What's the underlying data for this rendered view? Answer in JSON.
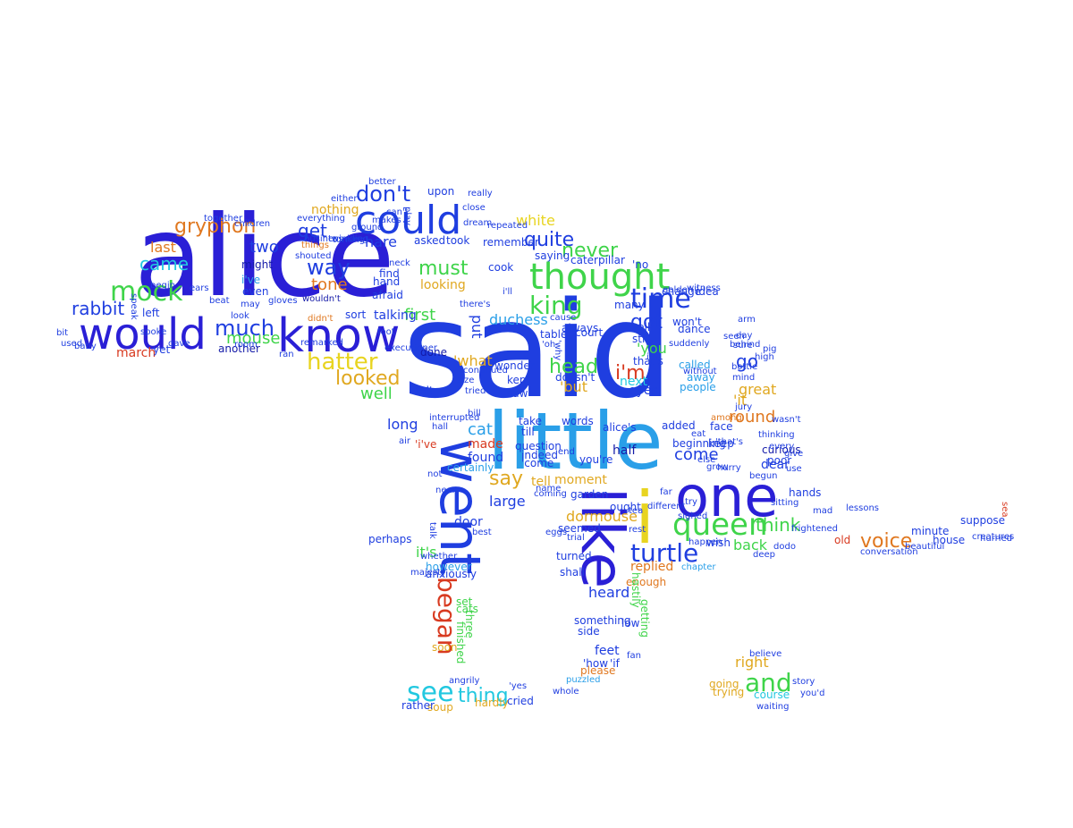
{
  "palette": {
    "blue": "#1f3ee0",
    "indigo": "#2a1fd6",
    "sky": "#2a9fe8",
    "cyan": "#22c8e0",
    "green": "#3fd44a",
    "lime": "#8ad21e",
    "yellow": "#e8d420",
    "gold": "#e0a820",
    "orange": "#e07820",
    "red": "#d83a20",
    "navy": "#141aa8"
  },
  "words": [
    {
      "text": "said",
      "color": "blue"
    },
    {
      "text": "alice",
      "color": "indigo"
    },
    {
      "text": "little",
      "color": "sky"
    },
    {
      "text": "one",
      "color": "indigo"
    },
    {
      "text": "would",
      "color": "indigo"
    },
    {
      "text": "know",
      "color": "indigo"
    },
    {
      "text": "could",
      "color": "blue"
    },
    {
      "text": "thought",
      "color": "green"
    },
    {
      "text": "like",
      "color": "indigo"
    },
    {
      "text": "i",
      "color": "yellow"
    },
    {
      "text": "went",
      "color": "blue"
    },
    {
      "text": "queen",
      "color": "green"
    },
    {
      "text": "time",
      "color": "blue"
    },
    {
      "text": "king",
      "color": "green"
    },
    {
      "text": "see",
      "color": "cyan"
    },
    {
      "text": "began",
      "color": "red"
    },
    {
      "text": "turtle",
      "color": "blue"
    },
    {
      "text": "mock",
      "color": "green"
    },
    {
      "text": "much",
      "color": "blue"
    },
    {
      "text": "and",
      "color": "green"
    },
    {
      "text": "hatter",
      "color": "yellow"
    },
    {
      "text": "way",
      "color": "blue"
    },
    {
      "text": "don't",
      "color": "blue"
    },
    {
      "text": "gryphon",
      "color": "orange"
    },
    {
      "text": "say",
      "color": "gold"
    },
    {
      "text": "thing",
      "color": "cyan"
    },
    {
      "text": "voice",
      "color": "orange"
    },
    {
      "text": "quite",
      "color": "blue"
    },
    {
      "text": "must",
      "color": "green"
    },
    {
      "text": "never",
      "color": "green"
    },
    {
      "text": "looked",
      "color": "gold"
    },
    {
      "text": "got",
      "color": "blue"
    },
    {
      "text": "head",
      "color": "green"
    },
    {
      "text": "rabbit",
      "color": "blue"
    },
    {
      "text": "get",
      "color": "blue"
    },
    {
      "text": "came",
      "color": "cyan"
    },
    {
      "text": "mouse",
      "color": "green"
    },
    {
      "text": "tone",
      "color": "orange"
    },
    {
      "text": "think",
      "color": "green"
    },
    {
      "text": "go",
      "color": "blue"
    },
    {
      "text": "round",
      "color": "orange"
    },
    {
      "text": "great",
      "color": "gold"
    },
    {
      "text": "back",
      "color": "green"
    },
    {
      "text": "first",
      "color": "green"
    },
    {
      "text": "duchess",
      "color": "sky"
    },
    {
      "text": "heard",
      "color": "blue"
    },
    {
      "text": "cat",
      "color": "sky"
    },
    {
      "text": "long",
      "color": "blue"
    },
    {
      "text": "large",
      "color": "blue"
    },
    {
      "text": "right",
      "color": "gold"
    },
    {
      "text": "two",
      "color": "blue"
    },
    {
      "text": "last",
      "color": "orange"
    },
    {
      "text": "white",
      "color": "yellow"
    },
    {
      "text": "hare",
      "color": "blue"
    },
    {
      "text": "well",
      "color": "green"
    },
    {
      "text": "come",
      "color": "blue"
    },
    {
      "text": "dormouse",
      "color": "gold"
    },
    {
      "text": "put",
      "color": "blue"
    },
    {
      "text": "it's",
      "color": "green"
    },
    {
      "text": "i'm",
      "color": "red"
    },
    {
      "text": "'you",
      "color": "green"
    },
    {
      "text": "'but",
      "color": "gold"
    },
    {
      "text": "'it",
      "color": "gold"
    },
    {
      "text": "found",
      "color": "blue"
    },
    {
      "text": "replied",
      "color": "orange"
    },
    {
      "text": "might",
      "color": "navy"
    },
    {
      "text": "march",
      "color": "red"
    },
    {
      "text": "nothing",
      "color": "gold"
    },
    {
      "text": "made",
      "color": "red"
    },
    {
      "text": "'what",
      "color": "gold"
    },
    {
      "text": "eyes",
      "color": "blue"
    },
    {
      "text": "next",
      "color": "cyan"
    },
    {
      "text": "half",
      "color": "navy"
    },
    {
      "text": "dear",
      "color": "blue"
    },
    {
      "text": "curious",
      "color": "navy"
    },
    {
      "text": "looking",
      "color": "gold"
    },
    {
      "text": "moment",
      "color": "gold"
    },
    {
      "text": "tell",
      "color": "gold"
    },
    {
      "text": "door",
      "color": "blue"
    },
    {
      "text": "talking",
      "color": "blue"
    },
    {
      "text": "sort",
      "color": "blue"
    },
    {
      "text": "caterpillar",
      "color": "blue"
    },
    {
      "text": "felt",
      "color": "blue"
    },
    {
      "text": "soon",
      "color": "gold"
    },
    {
      "text": "turned",
      "color": "blue"
    },
    {
      "text": "cried",
      "color": "blue"
    },
    {
      "text": "soup",
      "color": "gold"
    },
    {
      "text": "course",
      "color": "cyan"
    },
    {
      "text": "minute",
      "color": "blue"
    },
    {
      "text": "house",
      "color": "blue"
    },
    {
      "text": "old",
      "color": "red"
    },
    {
      "text": "feet",
      "color": "blue"
    },
    {
      "text": "please",
      "color": "orange"
    },
    {
      "text": "'i've",
      "color": "red"
    },
    {
      "text": "i've",
      "color": "sky"
    },
    {
      "text": "even",
      "color": "blue"
    },
    {
      "text": "table",
      "color": "blue"
    },
    {
      "text": "always",
      "color": "blue"
    },
    {
      "text": "still",
      "color": "blue"
    },
    {
      "text": "many",
      "color": "blue"
    },
    {
      "text": "trying",
      "color": "gold"
    },
    {
      "text": "going",
      "color": "gold"
    },
    {
      "text": "something",
      "color": "blue"
    },
    {
      "text": "side",
      "color": "blue"
    },
    {
      "text": "rather",
      "color": "blue"
    },
    {
      "text": "hardly",
      "color": "gold"
    },
    {
      "text": "left",
      "color": "blue"
    },
    {
      "text": "yet",
      "color": "blue"
    },
    {
      "text": "another",
      "color": "navy"
    },
    {
      "text": "people",
      "color": "sky"
    },
    {
      "text": "away",
      "color": "sky"
    },
    {
      "text": "called",
      "color": "sky"
    },
    {
      "text": "dance",
      "color": "blue"
    },
    {
      "text": "jury",
      "color": "blue"
    },
    {
      "text": "mind",
      "color": "blue"
    },
    {
      "text": "high",
      "color": "blue"
    },
    {
      "text": "sure",
      "color": "blue"
    },
    {
      "text": "poor",
      "color": "blue"
    },
    {
      "text": "face",
      "color": "blue"
    },
    {
      "text": "keep",
      "color": "blue"
    },
    {
      "text": "added",
      "color": "blue"
    },
    {
      "text": "beginning",
      "color": "blue"
    },
    {
      "text": "among",
      "color": "orange"
    },
    {
      "text": "wish",
      "color": "blue"
    },
    {
      "text": "chapter",
      "color": "sky"
    },
    {
      "text": "shall",
      "color": "blue"
    },
    {
      "text": "however",
      "color": "sky"
    },
    {
      "text": "anxiously",
      "color": "blue"
    },
    {
      "text": "perhaps",
      "color": "blue"
    },
    {
      "text": "certainly",
      "color": "sky"
    },
    {
      "text": "question",
      "color": "blue"
    },
    {
      "text": "indeed",
      "color": "blue"
    },
    {
      "text": "'come",
      "color": "blue"
    },
    {
      "text": "you're",
      "color": "blue"
    },
    {
      "text": "alice's",
      "color": "blue"
    },
    {
      "text": "words",
      "color": "blue"
    },
    {
      "text": "take",
      "color": "blue"
    },
    {
      "text": "till",
      "color": "blue"
    },
    {
      "text": "kept",
      "color": "blue"
    },
    {
      "text": "saw",
      "color": "blue"
    },
    {
      "text": "wonder",
      "color": "blue"
    },
    {
      "text": "done",
      "color": "navy"
    },
    {
      "text": "three",
      "color": "green"
    },
    {
      "text": "finished",
      "color": "green"
    },
    {
      "text": "set",
      "color": "green"
    },
    {
      "text": "cats",
      "color": "green"
    },
    {
      "text": "whole",
      "color": "blue"
    },
    {
      "text": "puzzled",
      "color": "sky"
    },
    {
      "text": "'how",
      "color": "blue"
    },
    {
      "text": "'if",
      "color": "blue"
    },
    {
      "text": "fan",
      "color": "blue"
    },
    {
      "text": "'yes",
      "color": "blue"
    },
    {
      "text": "garden",
      "color": "blue"
    },
    {
      "text": "seemed",
      "color": "blue"
    },
    {
      "text": "court",
      "color": "blue"
    },
    {
      "text": "doesn't",
      "color": "blue"
    },
    {
      "text": "low",
      "color": "blue"
    },
    {
      "text": "getting",
      "color": "green"
    },
    {
      "text": "enough",
      "color": "orange"
    },
    {
      "text": "hastily",
      "color": "green"
    },
    {
      "text": "ought",
      "color": "blue"
    },
    {
      "text": "suppose",
      "color": "blue"
    },
    {
      "text": "conversation",
      "color": "blue"
    },
    {
      "text": "beautiful",
      "color": "blue"
    },
    {
      "text": "dodo",
      "color": "blue"
    },
    {
      "text": "mad",
      "color": "blue"
    },
    {
      "text": "give",
      "color": "blue"
    },
    {
      "text": "hands",
      "color": "blue"
    },
    {
      "text": "use",
      "color": "blue"
    },
    {
      "text": "every",
      "color": "blue"
    },
    {
      "text": "grow",
      "color": "blue"
    },
    {
      "text": "eat",
      "color": "blue"
    },
    {
      "text": "'well",
      "color": "blue"
    },
    {
      "text": "things",
      "color": "orange"
    },
    {
      "text": "find",
      "color": "blue"
    },
    {
      "text": "hand",
      "color": "blue"
    },
    {
      "text": "afraid",
      "color": "blue"
    },
    {
      "text": "upon",
      "color": "blue"
    },
    {
      "text": "asked",
      "color": "blue"
    },
    {
      "text": "took",
      "color": "blue"
    },
    {
      "text": "remember",
      "color": "blue"
    },
    {
      "text": "cook",
      "color": "blue"
    },
    {
      "text": "saying",
      "color": "blue"
    },
    {
      "text": "'no",
      "color": "blue"
    },
    {
      "text": "idea",
      "color": "blue"
    },
    {
      "text": "change",
      "color": "blue"
    },
    {
      "text": "won't",
      "color": "blue"
    },
    {
      "text": "that's",
      "color": "blue"
    },
    {
      "text": "day",
      "color": "blue"
    },
    {
      "text": "behind",
      "color": "blue"
    },
    {
      "text": "arm",
      "color": "blue"
    },
    {
      "text": "turning",
      "color": "blue"
    },
    {
      "text": "makes",
      "color": "blue"
    },
    {
      "text": "close",
      "color": "blue"
    },
    {
      "text": "can't",
      "color": "blue"
    },
    {
      "text": "better",
      "color": "blue"
    },
    {
      "text": "either",
      "color": "blue"
    },
    {
      "text": "together",
      "color": "blue"
    },
    {
      "text": "begin",
      "color": "blue"
    },
    {
      "text": "speak",
      "color": "blue"
    },
    {
      "text": "baby",
      "color": "blue"
    },
    {
      "text": "spoke",
      "color": "blue"
    },
    {
      "text": "gave",
      "color": "blue"
    },
    {
      "text": "used",
      "color": "blue"
    },
    {
      "text": "bit",
      "color": "blue"
    },
    {
      "text": "wouldn't",
      "color": "navy"
    },
    {
      "text": "didn't",
      "color": "orange"
    },
    {
      "text": "room",
      "color": "blue"
    },
    {
      "text": "ran",
      "color": "blue"
    },
    {
      "text": "may",
      "color": "blue"
    },
    {
      "text": "look",
      "color": "blue"
    },
    {
      "text": "everything",
      "color": "blue"
    },
    {
      "text": "twinkling",
      "color": "blue"
    },
    {
      "text": "hurried",
      "color": "blue"
    },
    {
      "text": "sea",
      "color": "red"
    },
    {
      "text": "believe",
      "color": "blue"
    },
    {
      "text": "story",
      "color": "blue"
    },
    {
      "text": "you'd",
      "color": "blue"
    },
    {
      "text": "waiting",
      "color": "blue"
    },
    {
      "text": "air",
      "color": "blue"
    },
    {
      "text": "majesty",
      "color": "blue"
    },
    {
      "text": "near",
      "color": "blue"
    },
    {
      "text": "talk",
      "color": "blue"
    },
    {
      "text": "best",
      "color": "blue"
    },
    {
      "text": "bill",
      "color": "blue"
    },
    {
      "text": "continued",
      "color": "blue"
    },
    {
      "text": "interrupted",
      "color": "blue"
    },
    {
      "text": "size",
      "color": "blue"
    },
    {
      "text": "tried",
      "color": "blue"
    },
    {
      "text": "hall",
      "color": "blue"
    },
    {
      "text": "shouted",
      "color": "blue"
    },
    {
      "text": "end",
      "color": "blue"
    },
    {
      "text": "far",
      "color": "blue"
    },
    {
      "text": "try",
      "color": "blue"
    },
    {
      "text": "rest",
      "color": "blue"
    },
    {
      "text": "deep",
      "color": "blue"
    },
    {
      "text": "sitting",
      "color": "blue"
    },
    {
      "text": "lessons",
      "color": "blue"
    },
    {
      "text": "frightened",
      "color": "blue"
    },
    {
      "text": "different",
      "color": "blue"
    },
    {
      "text": "angrily",
      "color": "blue"
    },
    {
      "text": "dream",
      "color": "blue"
    },
    {
      "text": "really",
      "color": "blue"
    },
    {
      "text": "repeated",
      "color": "blue"
    },
    {
      "text": "golden",
      "color": "blue"
    },
    {
      "text": "there's",
      "color": "blue"
    },
    {
      "text": "i'll",
      "color": "blue"
    },
    {
      "text": "'oh",
      "color": "blue"
    },
    {
      "text": "'why",
      "color": "blue"
    },
    {
      "text": "ite",
      "color": "blue"
    },
    {
      "text": "suddenly",
      "color": "blue"
    },
    {
      "text": "without",
      "color": "blue"
    },
    {
      "text": "else",
      "color": "blue"
    },
    {
      "text": "'that's",
      "color": "blue"
    },
    {
      "text": "thinking",
      "color": "blue"
    },
    {
      "text": "wasn't",
      "color": "blue"
    },
    {
      "text": "begun",
      "color": "blue"
    },
    {
      "text": "hurry",
      "color": "blue"
    },
    {
      "text": "neck",
      "color": "blue"
    },
    {
      "text": "not",
      "color": "blue"
    },
    {
      "text": "executioner",
      "color": "blue"
    },
    {
      "text": "foot",
      "color": "blue"
    },
    {
      "text": "children",
      "color": "blue"
    },
    {
      "text": "ground",
      "color": "blue"
    },
    {
      "text": "beat",
      "color": "blue"
    },
    {
      "text": "business",
      "color": "blue"
    },
    {
      "text": "remarked",
      "color": "blue"
    },
    {
      "text": "gloves",
      "color": "blue"
    },
    {
      "text": "name",
      "color": "blue"
    },
    {
      "text": "tea",
      "color": "blue"
    },
    {
      "text": "coming",
      "color": "blue"
    },
    {
      "text": "eggs",
      "color": "blue"
    },
    {
      "text": "trial",
      "color": "blue"
    },
    {
      "text": "sighed",
      "color": "blue"
    },
    {
      "text": "ears",
      "color": "blue"
    },
    {
      "text": "seen",
      "color": "blue"
    },
    {
      "text": "bottle",
      "color": "blue"
    },
    {
      "text": "whether",
      "color": "blue"
    },
    {
      "text": "creatures",
      "color": "blue"
    },
    {
      "text": "play",
      "color": "blue"
    },
    {
      "text": "witness",
      "color": "blue"
    },
    {
      "text": "pig",
      "color": "blue"
    },
    {
      "text": "happen",
      "color": "blue"
    },
    {
      "text": "cause",
      "color": "blue"
    },
    {
      "text": "glad",
      "color": "blue"
    }
  ]
}
